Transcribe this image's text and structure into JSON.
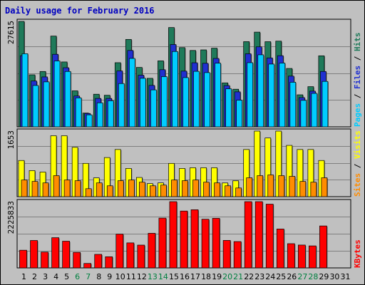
{
  "title": "Daily usage for February 2016",
  "colors": {
    "hits": "#1f7a5a",
    "files": "#2030d0",
    "pages": "#00ccff",
    "visits": "#ffff00",
    "sites": "#ff8c00",
    "kbytes": "#ff0000",
    "weekend_label": "#008040",
    "weekday_label": "#000000"
  },
  "chart_data": [
    {
      "type": "bar",
      "panel": "hits-files-pages",
      "max_label": "27615",
      "side_labels": [
        "Pages",
        " / ",
        "Files",
        " / ",
        "Hits"
      ],
      "categories": [
        "1",
        "2",
        "3",
        "4",
        "5",
        "6",
        "7",
        "8",
        "9",
        "10",
        "11",
        "12",
        "13",
        "14",
        "15",
        "16",
        "17",
        "18",
        "19",
        "20",
        "21",
        "22",
        "23",
        "24",
        "25",
        "26",
        "27",
        "28",
        "29",
        "30",
        "31"
      ],
      "ylim": [
        0,
        27615
      ],
      "series": [
        {
          "name": "Hits",
          "values": [
            27615,
            13620,
            14500,
            23770,
            16990,
            9430,
            3600,
            8540,
            8270,
            16800,
            22890,
            15560,
            12710,
            17280,
            26000,
            20750,
            20000,
            20150,
            20600,
            11510,
            9850,
            22310,
            24800,
            22300,
            22440,
            15290,
            8390,
            10520,
            18600,
            0,
            0
          ]
        },
        {
          "name": "Files",
          "values": [
            18630,
            12000,
            13070,
            19000,
            15480,
            8070,
            3500,
            7440,
            7430,
            14640,
            20000,
            13520,
            10850,
            14960,
            21550,
            14590,
            16780,
            16640,
            17910,
            10810,
            9160,
            19130,
            20950,
            18050,
            18630,
            13280,
            7660,
            9350,
            14500,
            0,
            0
          ]
        },
        {
          "name": "Pages",
          "values": [
            19150,
            10830,
            11780,
            17250,
            14500,
            7580,
            3140,
            6290,
            6840,
            11340,
            17920,
            12710,
            9680,
            13150,
            19730,
            12890,
            14530,
            14200,
            16670,
            9960,
            6980,
            16800,
            18860,
            16440,
            16700,
            11680,
            6940,
            8760,
            11900,
            0,
            0
          ]
        }
      ]
    },
    {
      "type": "bar",
      "panel": "visits-sites",
      "max_label": "1653",
      "side_labels": [
        "Sites",
        " / ",
        "Visits"
      ],
      "categories": [
        "1",
        "2",
        "3",
        "4",
        "5",
        "6",
        "7",
        "8",
        "9",
        "10",
        "11",
        "12",
        "13",
        "14",
        "15",
        "16",
        "17",
        "18",
        "19",
        "20",
        "21",
        "22",
        "23",
        "24",
        "25",
        "26",
        "27",
        "28",
        "29",
        "30",
        "31"
      ],
      "ylim": [
        0,
        1653
      ],
      "series": [
        {
          "name": "Visits",
          "values": [
            912,
            657,
            621,
            1536,
            1536,
            1244,
            839,
            474,
            986,
            1189,
            712,
            484,
            329,
            347,
            839,
            712,
            730,
            730,
            730,
            346,
            400,
            1189,
            1653,
            1480,
            1653,
            1293,
            1189,
            1189,
            912,
            0,
            0
          ]
        },
        {
          "name": "Sites",
          "values": [
            420,
            384,
            347,
            530,
            420,
            402,
            201,
            347,
            274,
            402,
            420,
            365,
            274,
            292,
            420,
            402,
            420,
            365,
            347,
            274,
            219,
            476,
            530,
            548,
            530,
            512,
            384,
            365,
            476,
            0,
            0
          ]
        }
      ]
    },
    {
      "type": "bar",
      "panel": "kbytes",
      "max_label": "2225833",
      "side_labels": [
        "KBytes"
      ],
      "categories": [
        "1",
        "2",
        "3",
        "4",
        "5",
        "6",
        "7",
        "8",
        "9",
        "10",
        "11",
        "12",
        "13",
        "14",
        "15",
        "16",
        "17",
        "18",
        "19",
        "20",
        "21",
        "22",
        "23",
        "24",
        "25",
        "26",
        "27",
        "28",
        "29",
        "30",
        "31"
      ],
      "ylim": [
        0,
        2225833
      ],
      "series": [
        {
          "name": "KBytes",
          "values": [
            594020,
            920900,
            531150,
            1014620,
            896850,
            521790,
            150000,
            454910,
            374740,
            1134510,
            840300,
            766030,
            1162690,
            1672790,
            2225833,
            1909800,
            1954270,
            1635240,
            1666140,
            923180,
            884530,
            2225833,
            2225833,
            2141580,
            1306680,
            814040,
            767700,
            739610,
            1409300,
            0,
            0
          ]
        }
      ]
    }
  ],
  "weekend_days": [
    "6",
    "7",
    "13",
    "14",
    "20",
    "21",
    "27",
    "28"
  ]
}
